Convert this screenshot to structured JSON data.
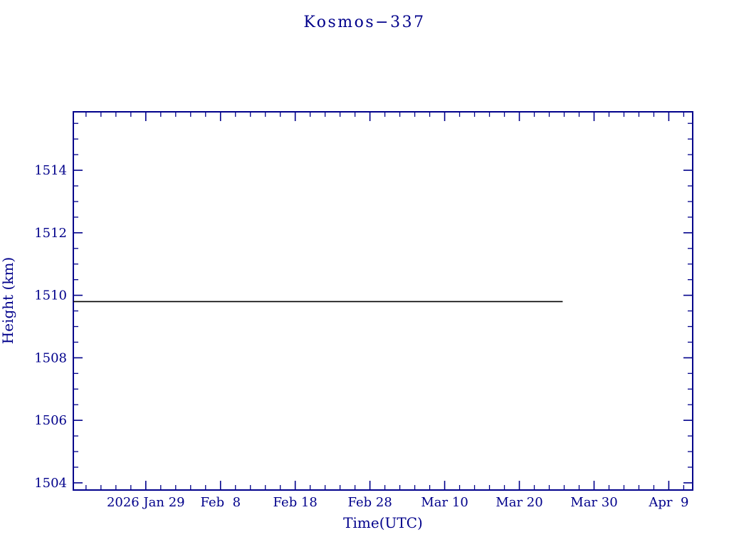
{
  "chart_data": {
    "type": "line",
    "title": "Kosmos−337",
    "xlabel": "Time(UTC)",
    "ylabel": "Height (km)",
    "grid": false,
    "legend": "none",
    "colors": {
      "axis": "#00008b",
      "title": "#00008b",
      "line": "#000000"
    },
    "x_axis": {
      "unit": "days since 2026 Jan 29",
      "range": [
        -9.7,
        73.2
      ],
      "major_ticks": [
        0,
        10,
        20,
        30,
        40,
        50,
        60,
        70
      ],
      "tick_labels": [
        "2026 Jan 29",
        "Feb  8",
        "Feb 18",
        "Feb 28",
        "Mar 10",
        "Mar 20",
        "Mar 30",
        "Apr  9"
      ],
      "minor_tick_step": 2
    },
    "y_axis": {
      "unit": "km",
      "range": [
        1503.77,
        1515.87
      ],
      "major_ticks": [
        1504,
        1506,
        1508,
        1510,
        1512,
        1514
      ],
      "tick_labels": [
        "1504",
        "1506",
        "1508",
        "1510",
        "1512",
        "1514"
      ],
      "minor_tick_step": 0.5
    },
    "series": [
      {
        "name": "height",
        "color": "#000000",
        "points": [
          {
            "x": -9.7,
            "y": 1509.8
          },
          {
            "x": 55.8,
            "y": 1509.8
          }
        ]
      }
    ]
  }
}
